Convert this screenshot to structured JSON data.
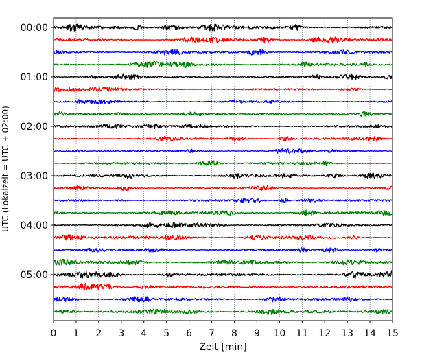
{
  "chart_data": {
    "type": "line",
    "title": "",
    "xlabel": "Zeit  [min]",
    "ylabel": "UTC (Lokalzeit = UTC + 02:00)",
    "xlim": [
      0,
      15
    ],
    "x_ticks": [
      0,
      1,
      2,
      3,
      4,
      5,
      6,
      7,
      8,
      9,
      10,
      11,
      12,
      13,
      14,
      15
    ],
    "grid": "vertical dotted",
    "rows_per_hour": 4,
    "row_minutes": 15,
    "hour_labels": [
      "00:00",
      "01:00",
      "02:00",
      "03:00",
      "04:00",
      "05:00"
    ],
    "trace_colors": [
      "#000000",
      "#ff0000",
      "#0000ff",
      "#008000"
    ],
    "traces": [
      {
        "start": "00:00",
        "color": "#000000",
        "minutes": 15,
        "amplitude": 0.9
      },
      {
        "start": "00:15",
        "color": "#ff0000",
        "minutes": 15,
        "amplitude": 0.7
      },
      {
        "start": "00:30",
        "color": "#0000ff",
        "minutes": 15,
        "amplitude": 0.7
      },
      {
        "start": "00:45",
        "color": "#008000",
        "minutes": 15,
        "amplitude": 0.8
      },
      {
        "start": "01:00",
        "color": "#000000",
        "minutes": 15,
        "amplitude": 0.7
      },
      {
        "start": "01:15",
        "color": "#ff0000",
        "minutes": 15,
        "amplitude": 0.6
      },
      {
        "start": "01:30",
        "color": "#0000ff",
        "minutes": 15,
        "amplitude": 0.6
      },
      {
        "start": "01:45",
        "color": "#008000",
        "minutes": 15,
        "amplitude": 0.7
      },
      {
        "start": "02:00",
        "color": "#000000",
        "minutes": 15,
        "amplitude": 0.7
      },
      {
        "start": "02:15",
        "color": "#ff0000",
        "minutes": 15,
        "amplitude": 0.6
      },
      {
        "start": "02:30",
        "color": "#0000ff",
        "minutes": 15,
        "amplitude": 0.6
      },
      {
        "start": "02:45",
        "color": "#008000",
        "minutes": 15,
        "amplitude": 0.7
      },
      {
        "start": "03:00",
        "color": "#000000",
        "minutes": 15,
        "amplitude": 0.8
      },
      {
        "start": "03:15",
        "color": "#ff0000",
        "minutes": 15,
        "amplitude": 0.6
      },
      {
        "start": "03:30",
        "color": "#0000ff",
        "minutes": 15,
        "amplitude": 0.6
      },
      {
        "start": "03:45",
        "color": "#008000",
        "minutes": 15,
        "amplitude": 0.7
      },
      {
        "start": "04:00",
        "color": "#000000",
        "minutes": 15,
        "amplitude": 0.7
      },
      {
        "start": "04:15",
        "color": "#ff0000",
        "minutes": 15,
        "amplitude": 0.9
      },
      {
        "start": "04:30",
        "color": "#0000ff",
        "minutes": 15,
        "amplitude": 0.7
      },
      {
        "start": "04:45",
        "color": "#008000",
        "minutes": 15,
        "amplitude": 0.9
      },
      {
        "start": "05:00",
        "color": "#000000",
        "minutes": 15,
        "amplitude": 0.9
      },
      {
        "start": "05:15",
        "color": "#ff0000",
        "minutes": 15,
        "amplitude": 0.9
      },
      {
        "start": "05:30",
        "color": "#0000ff",
        "minutes": 15,
        "amplitude": 0.8
      },
      {
        "start": "05:45",
        "color": "#008000",
        "minutes": 15,
        "amplitude": 0.9
      }
    ]
  }
}
